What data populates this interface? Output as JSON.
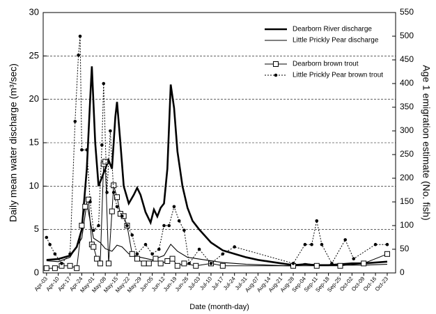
{
  "chart_data": {
    "type": "line",
    "y_label": "Daily mean water discharge (m³/sec)",
    "y2_label": "Age 1 emigration estimate (No. fish)",
    "x_label": "Date (month-day)",
    "xlim": [
      "Apr-01",
      "Oct-28"
    ],
    "xticks": [
      "Apr-03",
      "Apr-10",
      "Apr-17",
      "Apr-24",
      "May-01",
      "May-08",
      "May-15",
      "May-22",
      "May-29",
      "Jun-05",
      "Jun-12",
      "Jun-19",
      "Jun-26",
      "Jul-03",
      "Jul-10",
      "Jul-17",
      "Jul-24",
      "Jul-31",
      "Aug-07",
      "Aug-14",
      "Aug-21",
      "Aug-28",
      "Sep-04",
      "Sep-11",
      "Sep-18",
      "Sep-25",
      "Oct-02",
      "Oct-09",
      "Oct-16",
      "Oct-23"
    ],
    "ylim": [
      0,
      30
    ],
    "yticks": [
      0,
      5,
      10,
      15,
      20,
      25,
      30
    ],
    "y2lim": [
      0,
      550
    ],
    "y2ticks": [
      0,
      50,
      100,
      150,
      200,
      250,
      300,
      350,
      400,
      450,
      500,
      550
    ],
    "grid": true,
    "legend": "upper right",
    "series": [
      {
        "name": "Dearborn River discharge",
        "color": "#000000",
        "width": 2.6,
        "dash": false,
        "marker": "none",
        "x": [
          "Apr-03",
          "Apr-10",
          "Apr-17",
          "Apr-21",
          "Apr-24",
          "Apr-27",
          "Apr-29",
          "Apr-30",
          "May-02",
          "May-04",
          "May-06",
          "May-08",
          "May-10",
          "May-12",
          "May-14",
          "May-15",
          "May-17",
          "May-19",
          "May-22",
          "May-25",
          "May-27",
          "May-29",
          "Jun-01",
          "Jun-04",
          "Jun-06",
          "Jun-08",
          "Jun-10",
          "Jun-12",
          "Jun-14",
          "Jun-16",
          "Jun-18",
          "Jun-20",
          "Jun-23",
          "Jun-26",
          "Jun-29",
          "Jul-03",
          "Jul-10",
          "Jul-17",
          "Jul-24",
          "Jul-31",
          "Aug-07",
          "Aug-14",
          "Aug-21",
          "Aug-28",
          "Sep-04",
          "Sep-11",
          "Sep-18",
          "Sep-25",
          "Oct-02",
          "Oct-09",
          "Oct-16",
          "Oct-23"
        ],
        "values": [
          1.5,
          1.6,
          2.0,
          3,
          5,
          12,
          20,
          23.8,
          15,
          10,
          11,
          12,
          13,
          12,
          18,
          19.7,
          15,
          10,
          8,
          9,
          9.8,
          9,
          7,
          5.8,
          7.3,
          6.5,
          7.5,
          8,
          12,
          21.7,
          19,
          14,
          10,
          7.5,
          6,
          5,
          3.5,
          2.6,
          2.2,
          1.8,
          1.5,
          1.3,
          1.1,
          0.9,
          1.0,
          0.9,
          0.9,
          1.0,
          1.1,
          1.1,
          1.2,
          1.3
        ]
      },
      {
        "name": "Little Prickly Pear discharge",
        "color": "#000000",
        "width": 1.1,
        "dash": false,
        "marker": "none",
        "x": [
          "Apr-03",
          "Apr-10",
          "Apr-17",
          "Apr-24",
          "Apr-27",
          "Apr-29",
          "May-01",
          "May-05",
          "May-08",
          "May-12",
          "May-15",
          "May-18",
          "May-22",
          "May-29",
          "Jun-05",
          "Jun-12",
          "Jun-16",
          "Jun-20",
          "Jun-26",
          "Jul-03",
          "Jul-17",
          "Jul-31",
          "Aug-14",
          "Aug-28",
          "Sep-04",
          "Sep-11",
          "Sep-25",
          "Oct-09",
          "Oct-23"
        ],
        "values": [
          1.4,
          1.3,
          1.8,
          4,
          8,
          6,
          4,
          3.5,
          2.8,
          2.5,
          3.2,
          3.0,
          2.2,
          1.8,
          1.5,
          2.0,
          3.3,
          2.5,
          1.8,
          1.6,
          1.2,
          1.0,
          0.9,
          0.8,
          1.1,
          0.9,
          0.9,
          0.9,
          1.0
        ]
      },
      {
        "name": "Dearborn brown trout",
        "color": "#000000",
        "width": 1,
        "dash": false,
        "marker": "square",
        "axis": "y2",
        "x": [
          "Apr-03",
          "Apr-08",
          "Apr-12",
          "Apr-17",
          "Apr-21",
          "Apr-24",
          "Apr-26",
          "Apr-28",
          "Apr-30",
          "May-01",
          "May-03",
          "May-05",
          "May-07",
          "May-08",
          "May-10",
          "May-12",
          "May-13",
          "May-15",
          "May-17",
          "May-19",
          "May-21",
          "May-24",
          "May-27",
          "May-31",
          "Jun-03",
          "Jun-07",
          "Jun-10",
          "Jun-14",
          "Jun-17",
          "Jun-20",
          "Jun-24",
          "Jul-01",
          "Jul-10",
          "Jul-17",
          "Aug-28",
          "Sep-11",
          "Sep-25",
          "Oct-09",
          "Oct-23"
        ],
        "values": [
          10,
          10,
          15,
          15,
          10,
          100,
          140,
          155,
          60,
          55,
          30,
          20,
          230,
          235,
          20,
          130,
          185,
          160,
          125,
          120,
          100,
          40,
          30,
          20,
          20,
          30,
          20,
          25,
          30,
          15,
          20,
          15,
          20,
          15,
          15,
          15,
          15,
          20,
          40
        ]
      },
      {
        "name": "Little Prickly Pear brown trout",
        "color": "#000000",
        "width": 1,
        "dash": true,
        "marker": "circle",
        "axis": "y2",
        "x": [
          "Apr-03",
          "Apr-05",
          "Apr-08",
          "Apr-12",
          "Apr-17",
          "Apr-20",
          "Apr-22",
          "Apr-23",
          "Apr-24",
          "Apr-27",
          "Apr-29",
          "May-01",
          "May-04",
          "May-06",
          "May-07",
          "May-09",
          "May-11",
          "May-13",
          "May-15",
          "May-18",
          "May-21",
          "May-24",
          "May-27",
          "Jun-01",
          "Jun-05",
          "Jun-09",
          "Jun-12",
          "Jun-15",
          "Jun-18",
          "Jun-21",
          "Jun-24",
          "Jun-27",
          "Jul-03",
          "Jul-10",
          "Jul-17",
          "Jul-24",
          "Aug-28",
          "Sep-04",
          "Sep-08",
          "Sep-11",
          "Sep-14",
          "Sep-20",
          "Sep-28",
          "Oct-03",
          "Oct-16",
          "Oct-23"
        ],
        "values": [
          75,
          60,
          40,
          20,
          40,
          320,
          460,
          500,
          260,
          260,
          150,
          90,
          100,
          270,
          400,
          170,
          300,
          170,
          140,
          120,
          100,
          80,
          40,
          60,
          40,
          50,
          100,
          100,
          140,
          110,
          90,
          20,
          50,
          20,
          40,
          55,
          20,
          60,
          60,
          110,
          60,
          20,
          70,
          30,
          60,
          60
        ]
      }
    ]
  }
}
